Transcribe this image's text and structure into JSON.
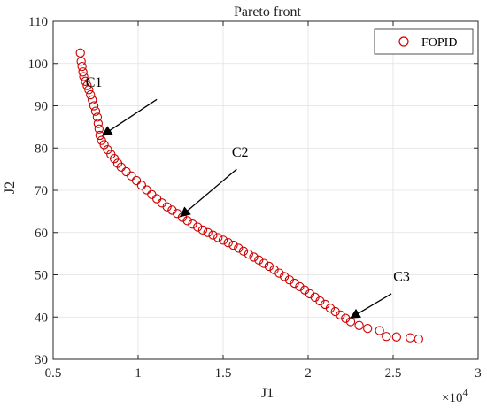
{
  "chart_data": {
    "type": "scatter",
    "title": "Pareto front",
    "xlabel": "J1",
    "ylabel": "J2",
    "x_multiplier_label": "×10",
    "x_multiplier_exp": "4",
    "xlim": [
      0.5,
      3
    ],
    "ylim": [
      30,
      110
    ],
    "x_ticks": [
      0.5,
      1,
      1.5,
      2,
      2.5,
      3
    ],
    "x_tick_labels": [
      "0.5",
      "1",
      "1.5",
      "2",
      "2.5",
      "3"
    ],
    "y_ticks": [
      30,
      40,
      50,
      60,
      70,
      80,
      90,
      100,
      110
    ],
    "y_tick_labels": [
      "30",
      "40",
      "50",
      "60",
      "70",
      "80",
      "90",
      "100",
      "110"
    ],
    "grid": true,
    "legend_position": "top-right",
    "series": [
      {
        "name": "FOPID",
        "color": "#cc0000",
        "marker": "open-circle",
        "points": [
          [
            0.66,
            102.5
          ],
          [
            0.665,
            100.5
          ],
          [
            0.67,
            99.3
          ],
          [
            0.675,
            98.0
          ],
          [
            0.68,
            96.9
          ],
          [
            0.69,
            95.8
          ],
          [
            0.7,
            94.8
          ],
          [
            0.71,
            93.8
          ],
          [
            0.72,
            92.6
          ],
          [
            0.73,
            91.4
          ],
          [
            0.74,
            90.0
          ],
          [
            0.75,
            88.7
          ],
          [
            0.76,
            87.3
          ],
          [
            0.765,
            85.8
          ],
          [
            0.77,
            84.5
          ],
          [
            0.775,
            83.0
          ],
          [
            0.785,
            81.8
          ],
          [
            0.8,
            80.8
          ],
          [
            0.82,
            79.6
          ],
          [
            0.84,
            78.5
          ],
          [
            0.86,
            77.5
          ],
          [
            0.88,
            76.4
          ],
          [
            0.9,
            75.5
          ],
          [
            0.93,
            74.4
          ],
          [
            0.96,
            73.4
          ],
          [
            0.99,
            72.3
          ],
          [
            1.02,
            71.2
          ],
          [
            1.05,
            70.1
          ],
          [
            1.08,
            69.0
          ],
          [
            1.11,
            68.0
          ],
          [
            1.14,
            67.0
          ],
          [
            1.17,
            66.1
          ],
          [
            1.2,
            65.3
          ],
          [
            1.23,
            64.5
          ],
          [
            1.26,
            63.6
          ],
          [
            1.29,
            62.8
          ],
          [
            1.32,
            62.0
          ],
          [
            1.35,
            61.3
          ],
          [
            1.38,
            60.6
          ],
          [
            1.41,
            60.0
          ],
          [
            1.44,
            59.4
          ],
          [
            1.47,
            58.8
          ],
          [
            1.5,
            58.2
          ],
          [
            1.53,
            57.6
          ],
          [
            1.56,
            57.0
          ],
          [
            1.59,
            56.3
          ],
          [
            1.62,
            55.6
          ],
          [
            1.65,
            54.9
          ],
          [
            1.68,
            54.2
          ],
          [
            1.71,
            53.5
          ],
          [
            1.74,
            52.7
          ],
          [
            1.77,
            52.0
          ],
          [
            1.8,
            51.2
          ],
          [
            1.83,
            50.4
          ],
          [
            1.86,
            49.6
          ],
          [
            1.89,
            48.8
          ],
          [
            1.92,
            48.0
          ],
          [
            1.95,
            47.2
          ],
          [
            1.98,
            46.4
          ],
          [
            2.01,
            45.5
          ],
          [
            2.04,
            44.7
          ],
          [
            2.07,
            43.8
          ],
          [
            2.1,
            43.0
          ],
          [
            2.13,
            42.1
          ],
          [
            2.16,
            41.3
          ],
          [
            2.19,
            40.5
          ],
          [
            2.22,
            39.7
          ],
          [
            2.25,
            38.9
          ],
          [
            2.3,
            38.0
          ],
          [
            2.35,
            37.3
          ],
          [
            2.42,
            36.8
          ],
          [
            2.46,
            35.4
          ],
          [
            2.52,
            35.3
          ],
          [
            2.6,
            35.1
          ],
          [
            2.65,
            34.8
          ]
        ]
      }
    ],
    "annotations": [
      {
        "text": "C1",
        "label_at": [
          0.74,
          94.5
        ],
        "arrow_from": [
          1.11,
          91.5
        ],
        "arrow_to": [
          0.79,
          83.0
        ]
      },
      {
        "text": "C2",
        "label_at": [
          1.6,
          78.0
        ],
        "arrow_from": [
          1.58,
          75.0
        ],
        "arrow_to": [
          1.25,
          63.8
        ]
      },
      {
        "text": "C3",
        "label_at": [
          2.55,
          48.5
        ],
        "arrow_from": [
          2.49,
          45.5
        ],
        "arrow_to": [
          2.25,
          39.8
        ]
      }
    ]
  }
}
